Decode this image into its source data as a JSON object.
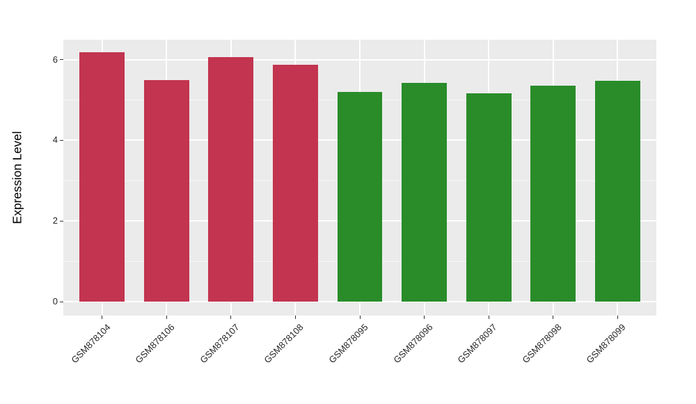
{
  "figure": {
    "background_color": "#FFFFFF",
    "panel_background_color": "#EBEBEB",
    "gridline_color": "#FFFFFF",
    "tick_mark_color": "#333333",
    "axis_text_color": "#262626"
  },
  "chart_data": {
    "type": "bar",
    "title": "",
    "xlabel": "",
    "ylabel": "Expression Level",
    "categories": [
      "GSM878104",
      "GSM878106",
      "GSM878107",
      "GSM878108",
      "GSM878095",
      "GSM878096",
      "GSM878097",
      "GSM878098",
      "GSM878099"
    ],
    "values": [
      6.19,
      5.5,
      6.06,
      5.87,
      5.2,
      5.42,
      5.16,
      5.35,
      5.48
    ],
    "bar_colors": [
      "#C2344F",
      "#C2344F",
      "#C2344F",
      "#C2344F",
      "#298C29",
      "#298C29",
      "#298C29",
      "#298C29",
      "#298C29"
    ],
    "color_legend": {
      "red_group_color": "#C2344F",
      "red_group_members": [
        "GSM878104",
        "GSM878106",
        "GSM878107",
        "GSM878108"
      ],
      "green_group_color": "#298C29",
      "green_group_members": [
        "GSM878095",
        "GSM878096",
        "GSM878097",
        "GSM878098",
        "GSM878099"
      ]
    },
    "ylim": [
      0,
      6.5
    ],
    "yticks": [
      0,
      2,
      4,
      6
    ],
    "yticks_minor": [
      1,
      3,
      5
    ],
    "grid": "on",
    "legend_position": "none",
    "x_label_rotation_deg": 45
  }
}
